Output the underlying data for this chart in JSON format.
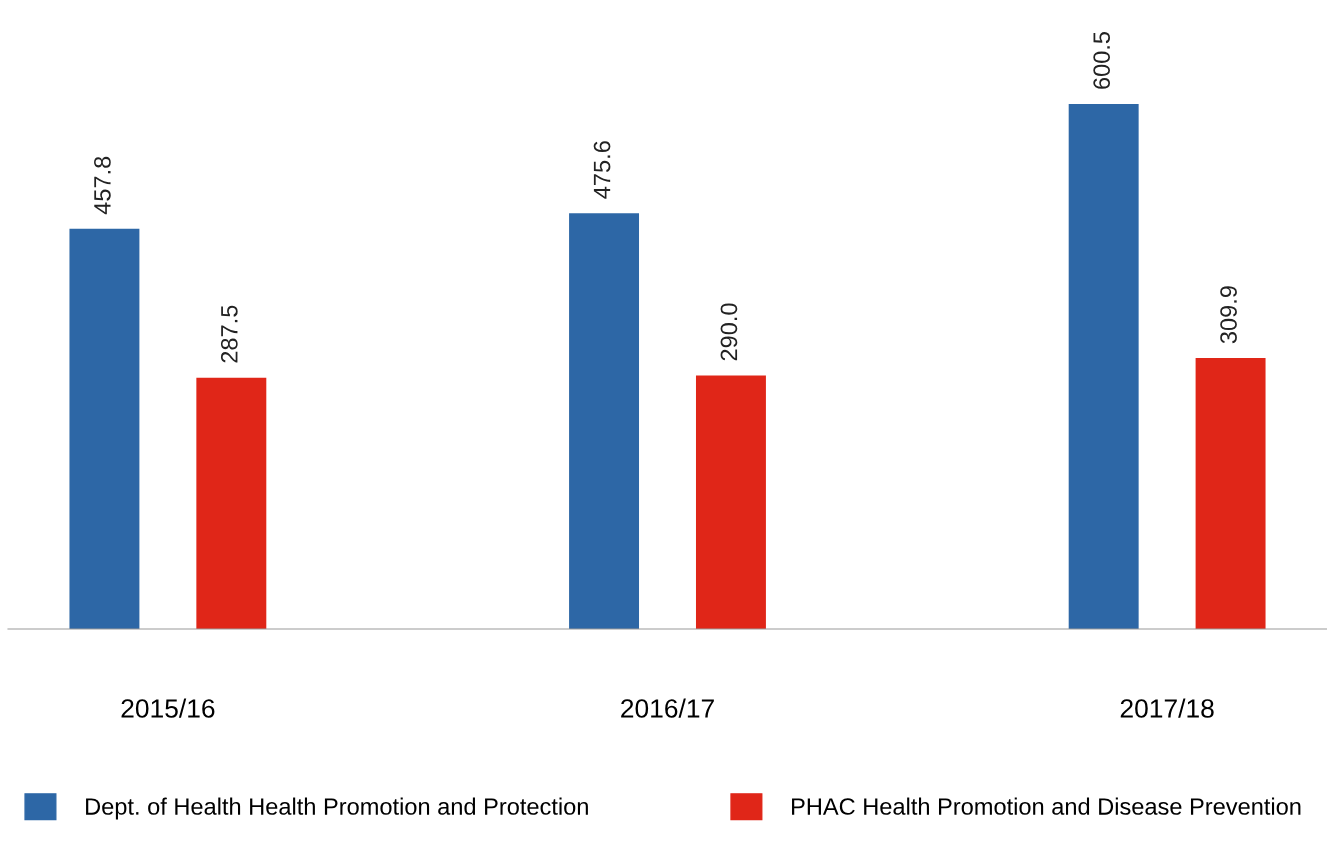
{
  "chart_data": {
    "type": "bar",
    "categories": [
      "2015/16",
      "2016/17",
      "2017/18"
    ],
    "series": [
      {
        "name": "Dept. of Health Health Promotion and Protection",
        "color": "#2d67a6",
        "values": [
          457.8,
          475.6,
          600.5
        ],
        "value_labels": [
          "457.8",
          "475.6",
          "600.5"
        ]
      },
      {
        "name": "PHAC Health Promotion and Disease Prevention",
        "color": "#e02618",
        "values": [
          287.5,
          290.0,
          309.9
        ],
        "value_labels": [
          "287.5",
          "290.0",
          "309.9"
        ]
      }
    ],
    "grid": false,
    "legend": "bottom"
  }
}
